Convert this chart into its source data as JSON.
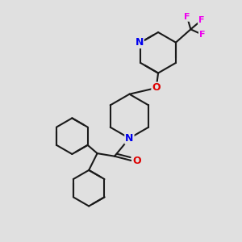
{
  "bg_color": "#e0e0e0",
  "bond_color": "#1a1a1a",
  "N_color": "#0000ee",
  "O_color": "#dd0000",
  "F_color": "#ee00ee",
  "bond_width": 1.5,
  "figsize": [
    3.0,
    3.0
  ],
  "dpi": 100,
  "xlim": [
    0,
    10
  ],
  "ylim": [
    0,
    10
  ]
}
